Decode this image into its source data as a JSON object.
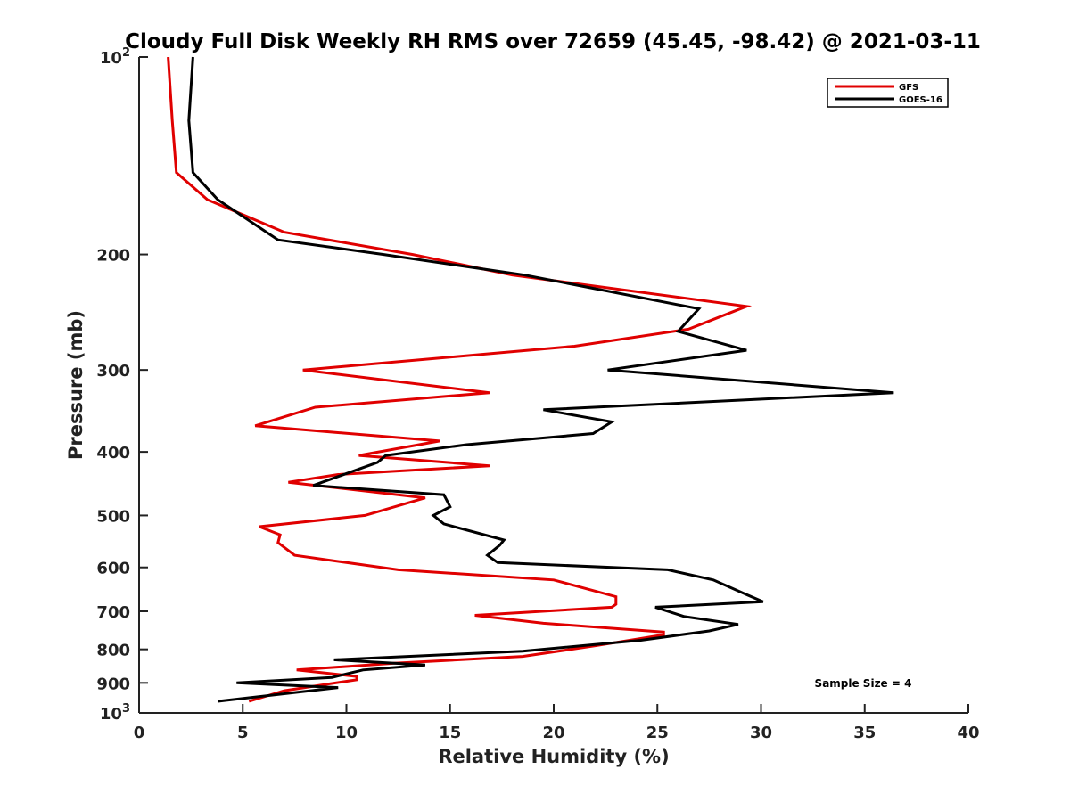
{
  "chart_data": {
    "type": "line",
    "title": "Cloudy Full Disk Weekly RH RMS over 72659 (45.45, -98.42) @ 2021-03-11",
    "xlabel": "Relative Humidity (%)",
    "ylabel": "Pressure (mb)",
    "xlim": [
      0,
      40
    ],
    "ylim": [
      100,
      1000
    ],
    "yscale": "log",
    "y_reversed": true,
    "grid": false,
    "legend_position": "top-right",
    "x_ticks": [
      "0",
      "5",
      "10",
      "15",
      "20",
      "25",
      "30",
      "35",
      "40"
    ],
    "y_ticks": [
      {
        "value": 100,
        "base": "10",
        "exp": "2"
      },
      {
        "value": 200,
        "label": "200"
      },
      {
        "value": 300,
        "label": "300"
      },
      {
        "value": 400,
        "label": "400"
      },
      {
        "value": 500,
        "label": "500"
      },
      {
        "value": 600,
        "label": "600"
      },
      {
        "value": 700,
        "label": "700"
      },
      {
        "value": 800,
        "label": "800"
      },
      {
        "value": 900,
        "label": "900"
      },
      {
        "value": 1000,
        "base": "10",
        "exp": "3"
      }
    ],
    "series": [
      {
        "name": "GFS",
        "color": "#e00000",
        "points": [
          [
            1.4,
            100
          ],
          [
            1.6,
            125
          ],
          [
            1.8,
            150
          ],
          [
            3.3,
            165
          ],
          [
            7.0,
            185
          ],
          [
            13.2,
            200
          ],
          [
            18.0,
            215
          ],
          [
            29.3,
            240
          ],
          [
            26.5,
            260
          ],
          [
            21.0,
            276
          ],
          [
            7.9,
            300
          ],
          [
            16.9,
            325
          ],
          [
            8.5,
            342
          ],
          [
            5.6,
            365
          ],
          [
            14.5,
            385
          ],
          [
            10.6,
            405
          ],
          [
            16.9,
            420
          ],
          [
            9.6,
            433
          ],
          [
            7.2,
            445
          ],
          [
            13.8,
            470
          ],
          [
            10.9,
            500
          ],
          [
            5.8,
            520
          ],
          [
            6.8,
            535
          ],
          [
            6.7,
            550
          ],
          [
            7.5,
            575
          ],
          [
            12.5,
            605
          ],
          [
            20.0,
            627
          ],
          [
            23.0,
            665
          ],
          [
            23.0,
            683
          ],
          [
            22.8,
            690
          ],
          [
            16.2,
            710
          ],
          [
            19.5,
            730
          ],
          [
            25.3,
            753
          ],
          [
            25.3,
            760
          ],
          [
            22.0,
            790
          ],
          [
            18.5,
            820
          ],
          [
            12.3,
            840
          ],
          [
            7.6,
            860
          ],
          [
            10.5,
            880
          ],
          [
            10.5,
            890
          ],
          [
            7.0,
            925
          ],
          [
            5.3,
            960
          ]
        ]
      },
      {
        "name": "GOES-16",
        "color": "#000000",
        "points": [
          [
            2.6,
            100
          ],
          [
            2.4,
            125
          ],
          [
            2.6,
            150
          ],
          [
            3.8,
            165
          ],
          [
            6.7,
            190
          ],
          [
            11.8,
            200
          ],
          [
            18.6,
            215
          ],
          [
            27.0,
            242
          ],
          [
            26.0,
            262
          ],
          [
            29.3,
            280
          ],
          [
            22.6,
            300
          ],
          [
            36.4,
            325
          ],
          [
            19.5,
            345
          ],
          [
            22.8,
            360
          ],
          [
            21.9,
            375
          ],
          [
            15.8,
            390
          ],
          [
            11.9,
            405
          ],
          [
            11.5,
            415
          ],
          [
            8.4,
            450
          ],
          [
            14.7,
            465
          ],
          [
            15.0,
            485
          ],
          [
            14.2,
            500
          ],
          [
            14.7,
            515
          ],
          [
            17.6,
            545
          ],
          [
            17.4,
            555
          ],
          [
            16.8,
            575
          ],
          [
            17.3,
            590
          ],
          [
            25.5,
            605
          ],
          [
            27.7,
            627
          ],
          [
            29.3,
            660
          ],
          [
            30.1,
            677
          ],
          [
            24.9,
            690
          ],
          [
            26.3,
            713
          ],
          [
            28.9,
            733
          ],
          [
            27.5,
            750
          ],
          [
            24.2,
            775
          ],
          [
            18.5,
            805
          ],
          [
            9.4,
            830
          ],
          [
            13.8,
            845
          ],
          [
            10.8,
            860
          ],
          [
            9.3,
            883
          ],
          [
            4.7,
            900
          ],
          [
            9.6,
            915
          ],
          [
            3.8,
            960
          ]
        ]
      }
    ],
    "annotations": [
      "Sample Size = 4"
    ]
  }
}
